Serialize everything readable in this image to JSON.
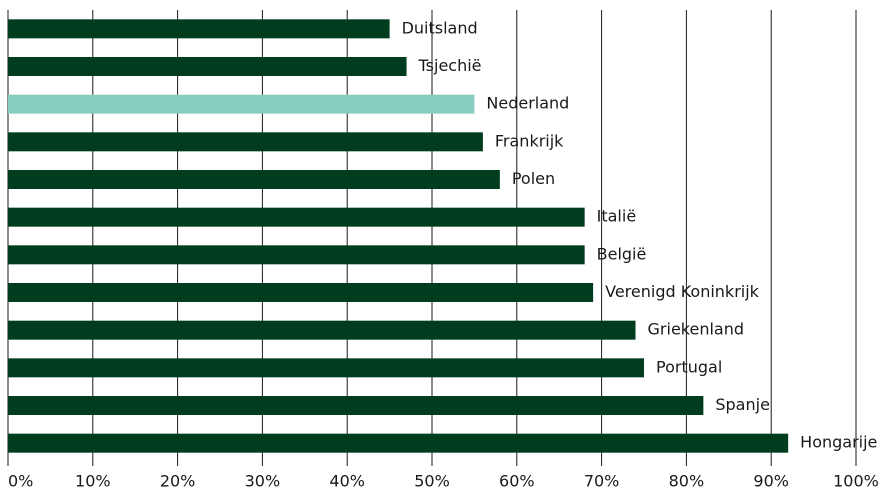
{
  "chart_data": {
    "type": "hbar",
    "categories": [
      "Duitsland",
      "Tsjechië",
      "Nederland",
      "Frankrijk",
      "Polen",
      "Italië",
      "België",
      "Verenigd Koninkrijk",
      "Griekenland",
      "Portugal",
      "Spanje",
      "Hongarije"
    ],
    "values": [
      45,
      47,
      55,
      56,
      58,
      68,
      68,
      69,
      74,
      75,
      82,
      92
    ],
    "colors": [
      "#003d1f",
      "#003d1f",
      "#88cdbf",
      "#003d1f",
      "#003d1f",
      "#003d1f",
      "#003d1f",
      "#003d1f",
      "#003d1f",
      "#003d1f",
      "#003d1f",
      "#003d1f"
    ],
    "xlim": [
      0,
      100
    ],
    "xticks": [
      {
        "value": 0,
        "label": "0%"
      },
      {
        "value": 10,
        "label": "10%"
      },
      {
        "value": 20,
        "label": "20%"
      },
      {
        "value": 30,
        "label": "30%"
      },
      {
        "value": 40,
        "label": "40%"
      },
      {
        "value": 50,
        "label": "50%"
      },
      {
        "value": 60,
        "label": "60%"
      },
      {
        "value": 70,
        "label": "70%"
      },
      {
        "value": 80,
        "label": "80%"
      },
      {
        "value": 90,
        "label": "90%"
      },
      {
        "value": 100,
        "label": "100%"
      }
    ],
    "grid": true
  }
}
